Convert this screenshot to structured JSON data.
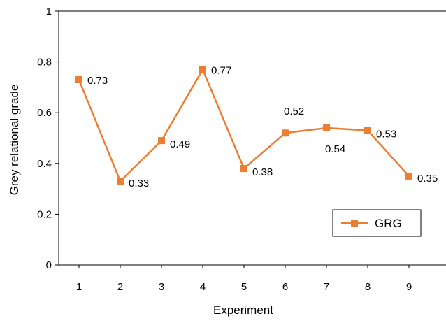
{
  "chart_data": {
    "type": "line",
    "title": "",
    "xlabel": "Experiment",
    "ylabel": "Grey relational grade",
    "x": [
      1,
      2,
      3,
      4,
      5,
      6,
      7,
      8,
      9
    ],
    "xticks": [
      "1",
      "2",
      "3",
      "4",
      "5",
      "6",
      "7",
      "8",
      "9"
    ],
    "ylim": [
      0,
      1
    ],
    "yticks": [
      "0",
      "0.2",
      "0.4",
      "0.6",
      "0.8",
      "1"
    ],
    "grid": false,
    "legend_position": "bottom-right",
    "series": [
      {
        "name": "GRG",
        "color": "#ED7D31",
        "marker": "square",
        "values": [
          0.73,
          0.33,
          0.49,
          0.77,
          0.38,
          0.52,
          0.54,
          0.53,
          0.35
        ],
        "data_labels": [
          "0.73",
          "0.33",
          "0.49",
          "0.77",
          "0.38",
          "0.52",
          "0.54",
          "0.53",
          "0.35"
        ]
      }
    ]
  }
}
